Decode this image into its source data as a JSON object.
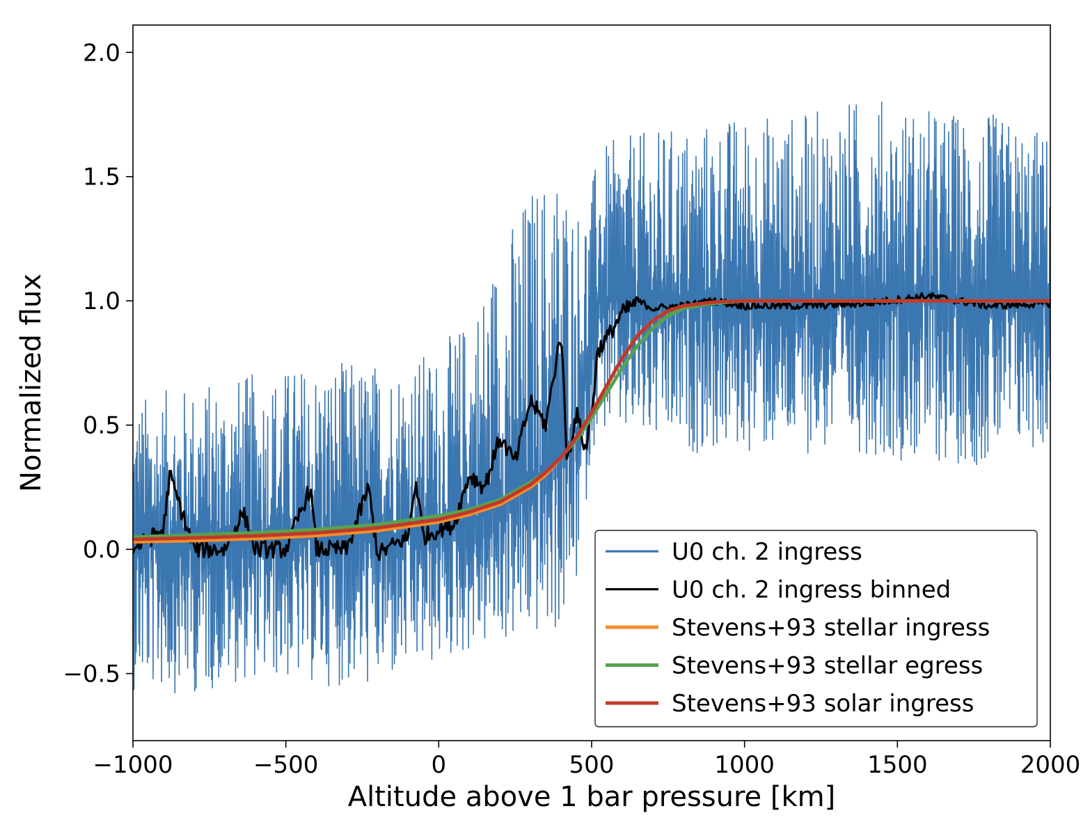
{
  "chart_data": {
    "type": "line",
    "xlabel": "Altitude above 1 bar pressure [km]",
    "ylabel": "Normalized flux",
    "xlim": [
      -1000,
      2000
    ],
    "ylim": [
      -0.77,
      2.11
    ],
    "xticks": [
      -1000,
      -500,
      0,
      500,
      1000,
      1500,
      2000
    ],
    "xtick_labels": [
      "−1000",
      "−500",
      "0",
      "500",
      "1000",
      "1500",
      "2000"
    ],
    "yticks": [
      -0.5,
      0.0,
      0.5,
      1.0,
      1.5,
      2.0
    ],
    "ytick_labels": [
      "−0.5",
      "0.0",
      "0.5",
      "1.0",
      "1.5",
      "2.0"
    ],
    "grid": false,
    "legend_position": "lower-right",
    "series": [
      {
        "name": "U0 ch. 2 ingress",
        "color": "#3a76b0",
        "style": "noisy raw light curve",
        "x": [
          -1000,
          -800,
          -600,
          -400,
          -200,
          0,
          100,
          200,
          300,
          400,
          450,
          500,
          520,
          600,
          800,
          1000,
          1200,
          1400,
          1600,
          1800,
          2000
        ],
        "y": [
          0.02,
          0.02,
          0.03,
          0.04,
          0.05,
          0.08,
          0.12,
          0.17,
          0.25,
          0.38,
          0.48,
          0.8,
          1.0,
          1.0,
          1.0,
          1.0,
          1.0,
          1.0,
          1.0,
          1.0,
          1.0
        ],
        "band_min": [
          -0.6,
          -0.62,
          -0.55,
          -0.58,
          -0.6,
          -0.5,
          -0.45,
          -0.42,
          -0.4,
          -0.38,
          -0.2,
          0.35,
          0.45,
          0.4,
          0.35,
          0.35,
          0.35,
          0.35,
          0.3,
          0.3,
          0.38
        ],
        "band_max": [
          0.65,
          0.7,
          0.75,
          0.8,
          0.8,
          0.85,
          1.0,
          1.3,
          1.55,
          1.65,
          1.45,
          1.5,
          1.65,
          1.7,
          1.75,
          1.8,
          1.8,
          1.88,
          1.82,
          1.8,
          1.72
        ]
      },
      {
        "name": "U0 ch. 2 ingress binned",
        "color": "#000000",
        "x": [
          -1000,
          -900,
          -880,
          -800,
          -700,
          -640,
          -600,
          -500,
          -420,
          -400,
          -300,
          -230,
          -200,
          -100,
          -75,
          -50,
          0,
          50,
          100,
          150,
          200,
          250,
          300,
          350,
          400,
          420,
          450,
          480,
          500,
          520,
          550,
          600,
          650,
          700,
          800,
          900,
          1000,
          1200,
          1400,
          1600,
          1800,
          2000
        ],
        "y": [
          0.0,
          0.08,
          0.3,
          0.0,
          0.0,
          0.15,
          0.0,
          0.0,
          0.25,
          0.0,
          0.0,
          0.25,
          -0.02,
          0.05,
          0.28,
          0.05,
          0.08,
          0.1,
          0.3,
          0.25,
          0.45,
          0.35,
          0.6,
          0.5,
          0.88,
          0.35,
          0.55,
          0.4,
          0.55,
          0.8,
          0.85,
          0.95,
          1.0,
          0.97,
          0.98,
          1.0,
          0.98,
          0.98,
          0.99,
          1.02,
          0.98,
          0.99
        ]
      },
      {
        "name": "Stevens+93 stellar ingress",
        "color": "#f28e2b",
        "x": [
          -1000,
          -800,
          -600,
          -400,
          -200,
          0,
          100,
          200,
          300,
          350,
          400,
          450,
          500,
          550,
          600,
          650,
          700,
          750,
          800,
          900,
          1000,
          1200,
          1500,
          2000
        ],
        "y": [
          0.03,
          0.035,
          0.043,
          0.055,
          0.075,
          0.11,
          0.14,
          0.18,
          0.25,
          0.3,
          0.37,
          0.45,
          0.55,
          0.66,
          0.77,
          0.86,
          0.92,
          0.96,
          0.98,
          0.995,
          1.0,
          1.0,
          1.0,
          1.0
        ]
      },
      {
        "name": "Stevens+93 stellar egress",
        "color": "#59a14f",
        "x": [
          -1000,
          -800,
          -600,
          -400,
          -200,
          0,
          100,
          200,
          300,
          350,
          400,
          450,
          500,
          550,
          600,
          650,
          700,
          750,
          800,
          900,
          1000,
          1200,
          1500,
          2000
        ],
        "y": [
          0.05,
          0.058,
          0.067,
          0.08,
          0.1,
          0.135,
          0.16,
          0.2,
          0.27,
          0.31,
          0.37,
          0.44,
          0.53,
          0.63,
          0.73,
          0.82,
          0.89,
          0.94,
          0.97,
          0.99,
          1.0,
          1.0,
          1.0,
          1.0
        ]
      },
      {
        "name": "Stevens+93 solar ingress",
        "color": "#c0392b",
        "x": [
          -1000,
          -800,
          -600,
          -400,
          -200,
          0,
          100,
          200,
          300,
          350,
          400,
          450,
          500,
          550,
          600,
          650,
          700,
          750,
          800,
          900,
          1000,
          1200,
          1500,
          2000
        ],
        "y": [
          0.04,
          0.046,
          0.054,
          0.066,
          0.086,
          0.12,
          0.15,
          0.19,
          0.26,
          0.31,
          0.37,
          0.45,
          0.55,
          0.66,
          0.77,
          0.86,
          0.92,
          0.96,
          0.98,
          0.995,
          1.0,
          1.0,
          1.0,
          1.0
        ]
      }
    ]
  }
}
